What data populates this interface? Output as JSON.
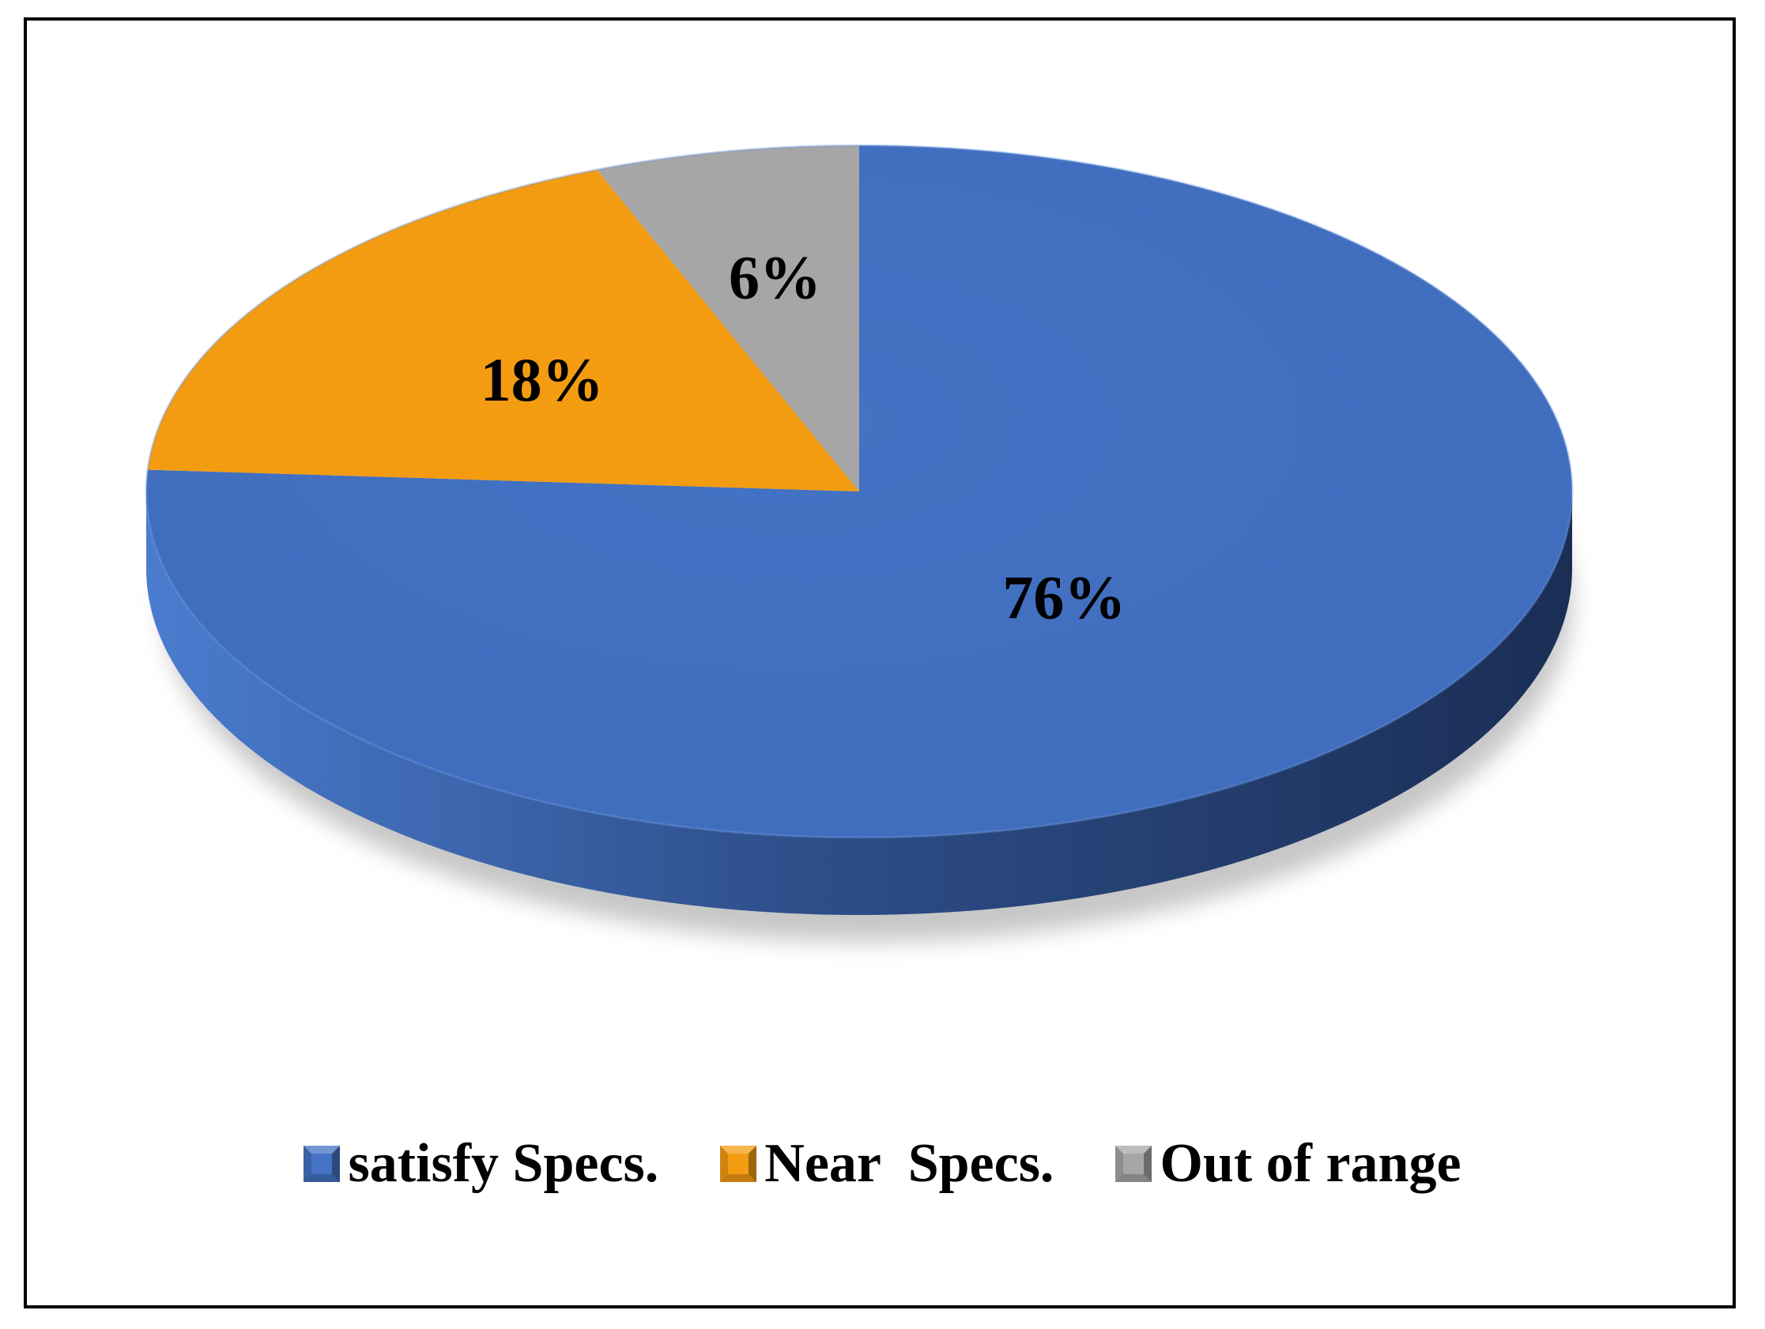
{
  "chart_data": {
    "type": "pie",
    "title": "",
    "categories": [
      "satisfy Specs.",
      "Near  Specs.",
      "Out of range"
    ],
    "values": [
      76,
      18,
      6
    ],
    "value_labels": [
      "76%",
      "18%",
      "6%"
    ],
    "colors": [
      "#4472C4",
      "#F39C12",
      "#A6A6A6"
    ],
    "style": "3d",
    "legend_position": "bottom"
  }
}
